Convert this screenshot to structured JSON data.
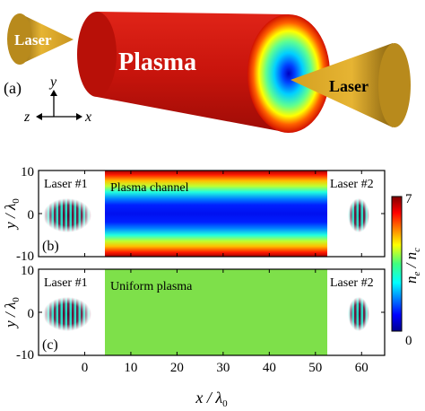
{
  "schematic": {
    "panel_label": "(a)",
    "cylinder_label": "Plasma",
    "laser_left_label": "Laser",
    "laser_right_label": "Laser",
    "axes": {
      "y": "y",
      "z": "z",
      "x": "x"
    },
    "colors": {
      "plasma_red": "#c8140c",
      "cone_gold": "#d4a020"
    }
  },
  "panels": [
    {
      "id": "b",
      "panel_label": "(b)",
      "title": "Plasma channel",
      "laser1_label": "Laser #1",
      "laser2_label": "Laser #2",
      "profile": "channel",
      "y_ticks": [
        "10",
        "0",
        "-10"
      ]
    },
    {
      "id": "c",
      "panel_label": "(c)",
      "title": "Uniform plasma",
      "laser1_label": "Laser #1",
      "laser2_label": "Laser #2",
      "profile": "uniform",
      "y_ticks": [
        "10",
        "0",
        "-10"
      ]
    }
  ],
  "y_axis_label": "y / λ",
  "y_axis_sub": "0",
  "x_axis_label": "x / λ",
  "x_axis_sub": "0",
  "x_ticks": [
    "0",
    "10",
    "20",
    "30",
    "40",
    "50",
    "60"
  ],
  "colorbar": {
    "label_main": "n",
    "label_sub_e": "e",
    "label_sep": " / n",
    "label_sub_c": "c",
    "ticks": [
      "7",
      "0"
    ],
    "range": [
      0,
      7
    ],
    "colormap": "jet"
  },
  "chart_data": [
    {
      "type": "heatmap",
      "title": "Plasma channel",
      "xlabel": "x / λ0",
      "ylabel": "y / λ0",
      "xlim": [
        -10,
        65
      ],
      "ylim": [
        -10,
        10
      ],
      "plasma_x_range": [
        3,
        53
      ],
      "density_profile": "parabolic channel: ne/nc ≈ 0 on axis (y=0), rising to ≈7 at y=±10",
      "laser1_center_x": -5,
      "laser2_center_x": 60,
      "colorbar_range": [
        0,
        7
      ]
    },
    {
      "type": "heatmap",
      "title": "Uniform plasma",
      "xlabel": "x / λ0",
      "ylabel": "y / λ0",
      "xlim": [
        -10,
        65
      ],
      "ylim": [
        -10,
        10
      ],
      "plasma_x_range": [
        3,
        53
      ],
      "density_profile": "uniform: ne/nc ≈ 3.5",
      "laser1_center_x": -5,
      "laser2_center_x": 60,
      "colorbar_range": [
        0,
        7
      ]
    }
  ]
}
